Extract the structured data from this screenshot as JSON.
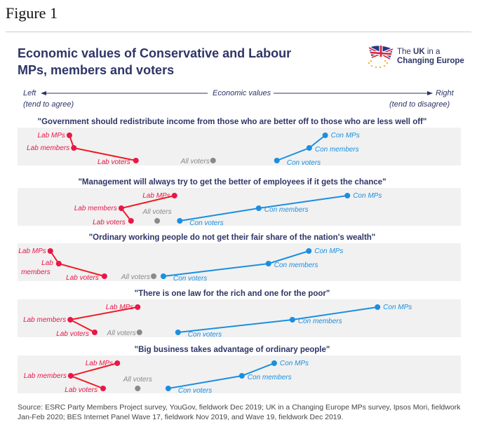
{
  "figure_label": "Figure 1",
  "logo": {
    "line1_pre": "The ",
    "line1_bold": "UK",
    "line1_post": " in a",
    "line2": "Changing Europe",
    "icon": "union-flag-eu-stars-icon"
  },
  "colors": {
    "labour": "#e8174a",
    "labour_line": "#ef1c24",
    "conservative": "#1a8fe0",
    "all_voters": "#8a8a8a",
    "band": "#f1f1f1",
    "title": "#2e3566"
  },
  "source": "Source: ESRC Party Members Project survey, YouGov, fieldwork Dec 2019; UK in a Changing Europe MPs survey, Ipsos Mori, fieldwork Jan-Feb 2020; BES Internet Panel Wave 17, fieldwork Nov 2019, and Wave 19, fieldwork Dec 2019.",
  "chart_data": {
    "type": "scatter",
    "title": "Economic values of Conservative and Labour MPs, members and voters",
    "xlabel": "Economic values",
    "x_axis": {
      "left_label": "Left",
      "left_sub": "(tend to agree)",
      "right_label": "Right",
      "right_sub": "(tend to disagree)",
      "range": [
        0,
        100
      ],
      "note": "relative position estimated from figure; no numeric ticks shown"
    },
    "grid": false,
    "legend": "inline labels",
    "groups": [
      "Lab MPs",
      "Lab members",
      "Lab voters",
      "All voters",
      "Con voters",
      "Con members",
      "Con MPs"
    ],
    "panels": [
      {
        "statement": "\"Government should redistribute income from those who are better off to those who are less well off\"",
        "points": [
          {
            "label": "Lab MPs",
            "party": "lab",
            "x": 11.7,
            "row": 0
          },
          {
            "label": "Lab members",
            "party": "lab",
            "x": 12.7,
            "row": 1
          },
          {
            "label": "Lab voters",
            "party": "lab",
            "x": 26.7,
            "row": 2
          },
          {
            "label": "All voters",
            "party": "all",
            "x": 44.1,
            "row": 2
          },
          {
            "label": "Con voters",
            "party": "con",
            "x": 58.5,
            "row": 2
          },
          {
            "label": "Con members",
            "party": "con",
            "x": 65.8,
            "row": 1
          },
          {
            "label": "Con MPs",
            "party": "con",
            "x": 69.4,
            "row": 0
          }
        ]
      },
      {
        "statement": "\"Management will always try to get the better of employees if it gets the chance\"",
        "points": [
          {
            "label": "Lab MPs",
            "party": "lab",
            "x": 35.4,
            "row": 0
          },
          {
            "label": "Lab members",
            "party": "lab",
            "x": 23.4,
            "row": 1
          },
          {
            "label": "Lab voters",
            "party": "lab",
            "x": 25.6,
            "row": 2
          },
          {
            "label": "All voters",
            "party": "all",
            "x": 31.5,
            "row": 2
          },
          {
            "label": "Con voters",
            "party": "con",
            "x": 36.6,
            "row": 2
          },
          {
            "label": "Con members",
            "party": "con",
            "x": 54.4,
            "row": 1
          },
          {
            "label": "Con MPs",
            "party": "con",
            "x": 74.4,
            "row": 0
          }
        ]
      },
      {
        "statement": "\"Ordinary working people do not get their fair share of the nation's wealth\"",
        "points": [
          {
            "label": "Lab MPs",
            "party": "lab",
            "x": 7.4,
            "row": 0
          },
          {
            "label": "Lab members",
            "party": "lab",
            "x": 9.3,
            "row": 1
          },
          {
            "label": "Lab voters",
            "party": "lab",
            "x": 19.6,
            "row": 2
          },
          {
            "label": "All voters",
            "party": "all",
            "x": 30.7,
            "row": 2
          },
          {
            "label": "Con voters",
            "party": "con",
            "x": 32.9,
            "row": 2
          },
          {
            "label": "Con members",
            "party": "con",
            "x": 56.6,
            "row": 1
          },
          {
            "label": "Con MPs",
            "party": "con",
            "x": 65.7,
            "row": 0
          }
        ]
      },
      {
        "statement": "\"There is one law for the rich and one for the poor\"",
        "points": [
          {
            "label": "Lab MPs",
            "party": "lab",
            "x": 27.1,
            "row": 0
          },
          {
            "label": "Lab members",
            "party": "lab",
            "x": 11.9,
            "row": 1
          },
          {
            "label": "Lab voters",
            "party": "lab",
            "x": 17.4,
            "row": 2
          },
          {
            "label": "All voters",
            "party": "all",
            "x": 27.5,
            "row": 2
          },
          {
            "label": "Con voters",
            "party": "con",
            "x": 36.2,
            "row": 2
          },
          {
            "label": "Con members",
            "party": "con",
            "x": 62.0,
            "row": 1
          },
          {
            "label": "Con MPs",
            "party": "con",
            "x": 81.2,
            "row": 0
          }
        ]
      },
      {
        "statement": "\"Big business takes advantage of ordinary people\"",
        "points": [
          {
            "label": "Lab MPs",
            "party": "lab",
            "x": 22.5,
            "row": 0
          },
          {
            "label": "Lab members",
            "party": "lab",
            "x": 12.0,
            "row": 1
          },
          {
            "label": "Lab voters",
            "party": "lab",
            "x": 19.3,
            "row": 2
          },
          {
            "label": "All voters",
            "party": "all",
            "x": 27.1,
            "row": 2
          },
          {
            "label": "Con voters",
            "party": "con",
            "x": 34.0,
            "row": 2
          },
          {
            "label": "Con members",
            "party": "con",
            "x": 50.6,
            "row": 1
          },
          {
            "label": "Con MPs",
            "party": "con",
            "x": 57.9,
            "row": 0
          }
        ]
      }
    ]
  }
}
